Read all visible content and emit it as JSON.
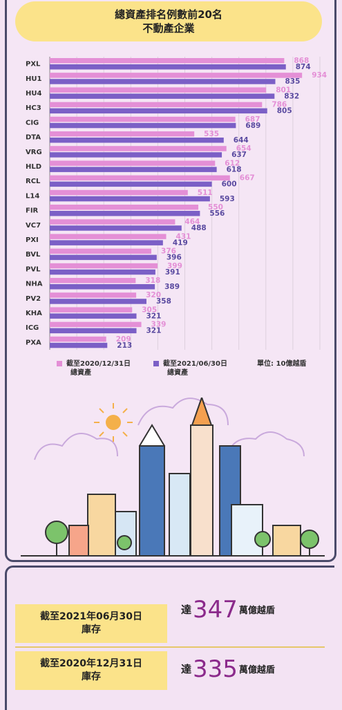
{
  "title": {
    "line1": "總資產排名例數前20名",
    "line2": "不動產企業"
  },
  "legend": {
    "series1": {
      "line1": "截至2020/12/31日",
      "line2": "總資產"
    },
    "series2": {
      "line1": "截至2021/06/30日",
      "line2": "總資產"
    },
    "unit": "單位: 10億越盾"
  },
  "chart_data": {
    "type": "bar",
    "orientation": "horizontal",
    "categories": [
      "PXL",
      "HU1",
      "HU4",
      "HC3",
      "CIG",
      "DTA",
      "VRG",
      "HLD",
      "RCL",
      "L14",
      "FIR",
      "VC7",
      "PXI",
      "BVL",
      "PVL",
      "NHA",
      "PV2",
      "KHA",
      "ICG",
      "PXA"
    ],
    "series": [
      {
        "name": "截至2020/12/31日 總資產",
        "color": "#e48fd6",
        "values": [
          868,
          934,
          801,
          786,
          687,
          535,
          654,
          612,
          667,
          511,
          550,
          464,
          431,
          376,
          399,
          318,
          320,
          305,
          339,
          209
        ]
      },
      {
        "name": "截至2021/06/30日 總資產",
        "color": "#7b5fc6",
        "values": [
          874,
          835,
          832,
          805,
          689,
          644,
          637,
          618,
          600,
          593,
          556,
          488,
          419,
          396,
          391,
          389,
          358,
          321,
          321,
          213
        ]
      }
    ],
    "xlim": [
      0,
      1000
    ],
    "xticks": [
      0,
      100,
      200,
      300,
      400,
      500,
      600,
      700,
      800,
      900,
      1000
    ],
    "grid": true
  },
  "summary": [
    {
      "label_line1": "截至2021年06月30日",
      "label_line2": "庫存",
      "prefix": "達",
      "value": "347",
      "unit": "萬億越盾"
    },
    {
      "label_line1": "截至2020年12月31日",
      "label_line2": "庫存",
      "prefix": "達",
      "value": "335",
      "unit": "萬億越盾"
    }
  ]
}
